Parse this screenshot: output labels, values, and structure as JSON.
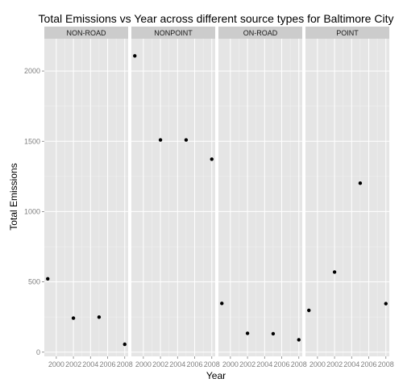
{
  "chart_data": {
    "type": "scatter",
    "title": "Total Emissions vs Year across different source types for Baltimore City",
    "xlabel": "Year",
    "ylabel": "Total Emissions",
    "x_ticks": [
      "2000",
      "2002",
      "2004",
      "2006",
      "2008"
    ],
    "y_ticks": [
      "0",
      "500",
      "1000",
      "1500",
      "2000"
    ],
    "xlim": [
      1998.6,
      2008.4
    ],
    "ylim": [
      -30,
      2230
    ],
    "grid": true,
    "legend": "none",
    "colors": {
      "panel_bg": "#e5e5e5",
      "strip_bg": "#cccccc",
      "grid_major": "#ffffff",
      "grid_minor": "#f2f2f2",
      "point": "#000000",
      "tick_label": "#7f7f7f"
    },
    "facets": [
      {
        "name": "NON-ROAD",
        "points": [
          {
            "x": 1999,
            "y": 522
          },
          {
            "x": 2002,
            "y": 242
          },
          {
            "x": 2005,
            "y": 249
          },
          {
            "x": 2008,
            "y": 56
          }
        ]
      },
      {
        "name": "NONPOINT",
        "points": [
          {
            "x": 1999,
            "y": 2108
          },
          {
            "x": 2002,
            "y": 1510
          },
          {
            "x": 2005,
            "y": 1510
          },
          {
            "x": 2008,
            "y": 1373
          }
        ]
      },
      {
        "name": "ON-ROAD",
        "points": [
          {
            "x": 1999,
            "y": 347
          },
          {
            "x": 2002,
            "y": 134
          },
          {
            "x": 2005,
            "y": 131
          },
          {
            "x": 2008,
            "y": 88
          }
        ]
      },
      {
        "name": "POINT",
        "points": [
          {
            "x": 1999,
            "y": 297
          },
          {
            "x": 2002,
            "y": 570
          },
          {
            "x": 2005,
            "y": 1202
          },
          {
            "x": 2008,
            "y": 345
          }
        ]
      }
    ]
  }
}
